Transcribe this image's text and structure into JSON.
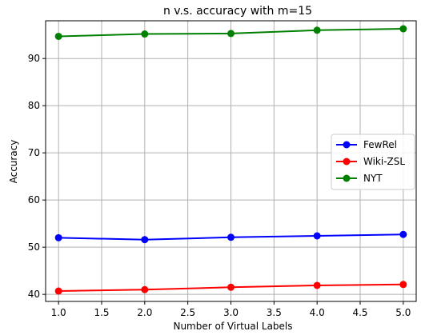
{
  "chart_data": {
    "type": "line",
    "title": "n v.s. accuracy with m=15",
    "xlabel": "Number of Virtual Labels",
    "ylabel": "Accuracy",
    "x": [
      1.0,
      2.0,
      3.0,
      4.0,
      5.0
    ],
    "xlim": [
      0.85,
      5.15
    ],
    "ylim": [
      38.5,
      98.0
    ],
    "xticks": [
      1.0,
      1.5,
      2.0,
      2.5,
      3.0,
      3.5,
      4.0,
      4.5,
      5.0
    ],
    "xtick_labels": [
      "1.0",
      "1.5",
      "2.0",
      "2.5",
      "3.0",
      "3.5",
      "4.0",
      "4.5",
      "5.0"
    ],
    "yticks": [
      40,
      50,
      60,
      70,
      80,
      90
    ],
    "ytick_labels": [
      "40",
      "50",
      "60",
      "70",
      "80",
      "90"
    ],
    "grid": true,
    "legend_position": "center-right",
    "series": [
      {
        "name": "FewRel",
        "color": "#0000ff",
        "values": [
          52.0,
          51.6,
          52.1,
          52.4,
          52.7
        ]
      },
      {
        "name": "Wiki-ZSL",
        "color": "#ff0000",
        "values": [
          40.7,
          41.0,
          41.5,
          41.9,
          42.1
        ]
      },
      {
        "name": "NYT",
        "color": "#008000",
        "values": [
          94.7,
          95.2,
          95.3,
          96.0,
          96.3
        ]
      }
    ]
  }
}
